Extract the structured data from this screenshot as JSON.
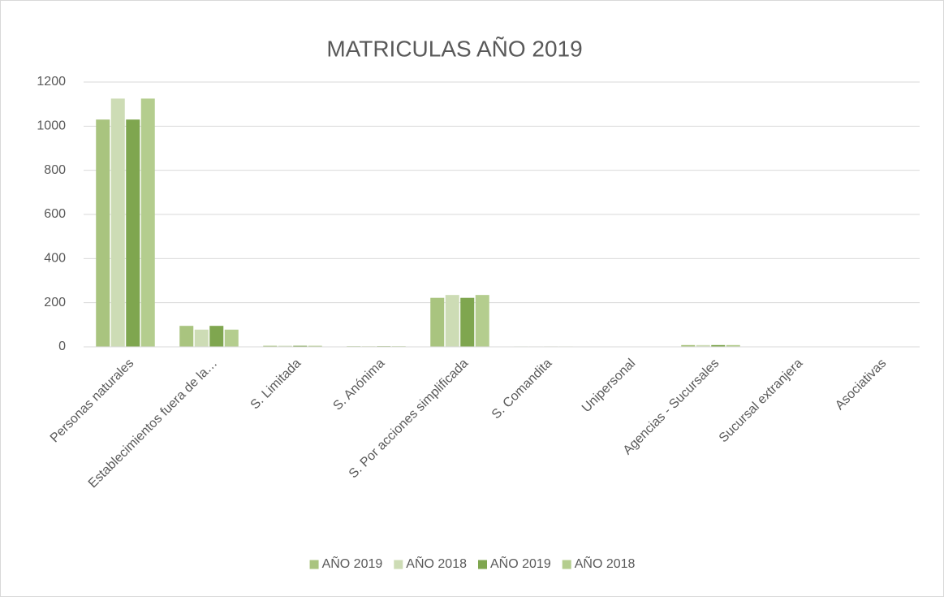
{
  "chart_data": {
    "type": "bar",
    "title": "MATRICULAS AÑO 2019",
    "categories": [
      "Personas naturales",
      "Establecimientos fuera de la…",
      "S. Limitada",
      "S. Anónima",
      "S. Por acciones simplificada",
      "S. Comandita",
      "Unipersonal",
      "Agencias - Sucursales",
      "Sucursal extranjera",
      "Asociativas"
    ],
    "series": [
      {
        "name": "AÑO 2019",
        "color": "#a9c47f",
        "values": [
          1030,
          95,
          5,
          3,
          222,
          2,
          0,
          8,
          0,
          0
        ]
      },
      {
        "name": "AÑO 2018",
        "color": "#cddcb5",
        "values": [
          1125,
          78,
          5,
          3,
          235,
          2,
          0,
          8,
          0,
          0
        ]
      },
      {
        "name": "AÑO 2019",
        "color": "#7fa64f",
        "values": [
          1030,
          95,
          5,
          3,
          222,
          2,
          0,
          8,
          0,
          0
        ]
      },
      {
        "name": "AÑO 2018",
        "color": "#b4cd8e",
        "values": [
          1125,
          78,
          5,
          3,
          235,
          2,
          0,
          8,
          0,
          0
        ]
      }
    ],
    "ylim": [
      0,
      1200
    ],
    "yticks": [
      0,
      200,
      400,
      600,
      800,
      1000,
      1200
    ],
    "grid": true,
    "legend": "bottom"
  }
}
